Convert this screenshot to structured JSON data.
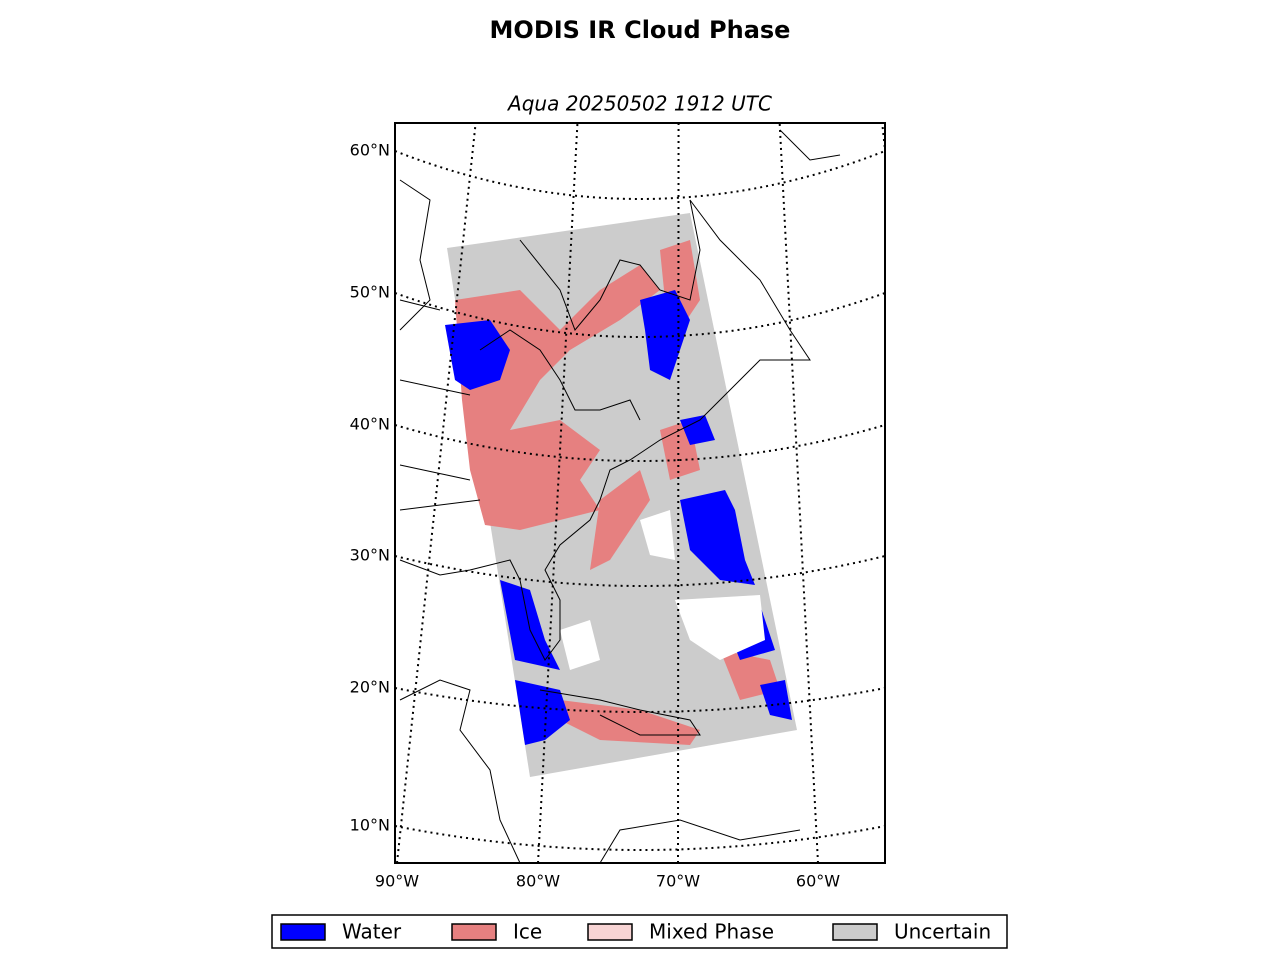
{
  "title": "MODIS IR Cloud Phase",
  "subtitle": "Aqua 20250502 1912 UTC",
  "latitude_labels": [
    "60°N",
    "50°N",
    "40°N",
    "30°N",
    "20°N",
    "10°N"
  ],
  "longitude_labels": [
    "90°W",
    "80°W",
    "70°W",
    "60°W"
  ],
  "legend": [
    {
      "label": "Water",
      "color": "#0000ff"
    },
    {
      "label": "Ice",
      "color": "#e68080"
    },
    {
      "label": "Mixed Phase",
      "color": "#f7d4d4"
    },
    {
      "label": "Uncertain",
      "color": "#cccccc"
    }
  ]
}
